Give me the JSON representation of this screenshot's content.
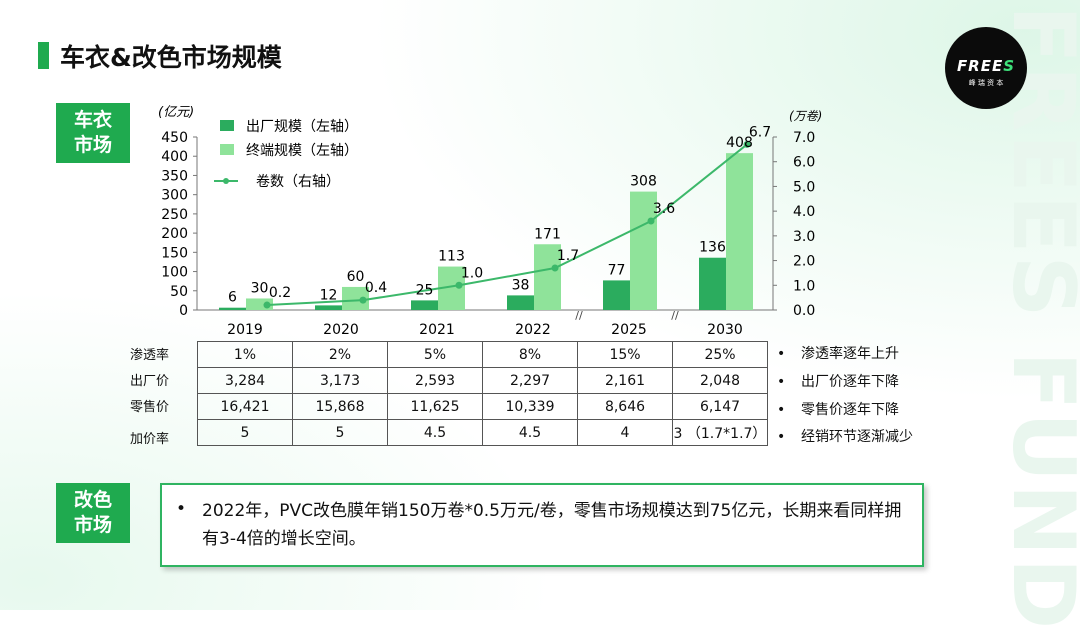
{
  "header": {
    "title": "车衣&改色市场规模",
    "logo_text": "FREES",
    "logo_sub": "峰 瑞 资 本",
    "watermark": "FREES FUND"
  },
  "sections": {
    "car_cover_tag": [
      "车衣",
      "市场"
    ],
    "color_change_tag": [
      "改色",
      "市场"
    ]
  },
  "chart_data": {
    "type": "bar",
    "categories": [
      "2019",
      "2020",
      "2021",
      "2022",
      "2025",
      "2030"
    ],
    "left_axis_unit": "(亿元)",
    "right_axis_unit": "(万卷)",
    "ylim_left": [
      0,
      450
    ],
    "ylim_right": [
      0,
      7.0
    ],
    "left_ticks": [
      "450",
      "400",
      "350",
      "300",
      "250",
      "200",
      "150",
      "100",
      "50",
      "0"
    ],
    "right_ticks": [
      "7.0",
      "6.0",
      "5.0",
      "4.0",
      "3.0",
      "2.0",
      "1.0",
      "0.0"
    ],
    "axis_break_marks": [
      "//",
      "//"
    ],
    "series": [
      {
        "name": "出厂规模（左轴）",
        "type": "bar",
        "axis": "left",
        "color": "#2bac5e",
        "values": [
          6,
          12,
          25,
          38,
          77,
          136
        ]
      },
      {
        "name": "终端规模（左轴）",
        "type": "bar",
        "axis": "left",
        "color": "#8fe39a",
        "values": [
          30,
          60,
          113,
          171,
          308,
          408
        ]
      },
      {
        "name": "卷数（右轴）",
        "type": "line",
        "axis": "right",
        "color": "#3cb86a",
        "values": [
          0.2,
          0.4,
          1.0,
          1.7,
          3.6,
          6.7
        ]
      }
    ]
  },
  "table": {
    "row_labels": [
      "渗透率",
      "出厂价",
      "零售价",
      "加价率"
    ],
    "rows": [
      [
        "1%",
        "2%",
        "5%",
        "8%",
        "15%",
        "25%"
      ],
      [
        "3,284",
        "3,173",
        "2,593",
        "2,297",
        "2,161",
        "2,048"
      ],
      [
        "16,421",
        "15,868",
        "11,625",
        "10,339",
        "8,646",
        "6,147"
      ],
      [
        "5",
        "5",
        "4.5",
        "4.5",
        "4",
        "3 （1.7*1.7）"
      ]
    ],
    "remarks": [
      "渗透率逐年上升",
      "出厂价逐年下降",
      "零售价逐年下降",
      "经销环节逐渐减少"
    ],
    "bullet": "•"
  },
  "note": {
    "bullet": "•",
    "text": "2022年，PVC改色膜年销150万卷*0.5万元/卷，零售市场规模达到75亿元，长期来看同样拥有3-4倍的增长空间。"
  }
}
